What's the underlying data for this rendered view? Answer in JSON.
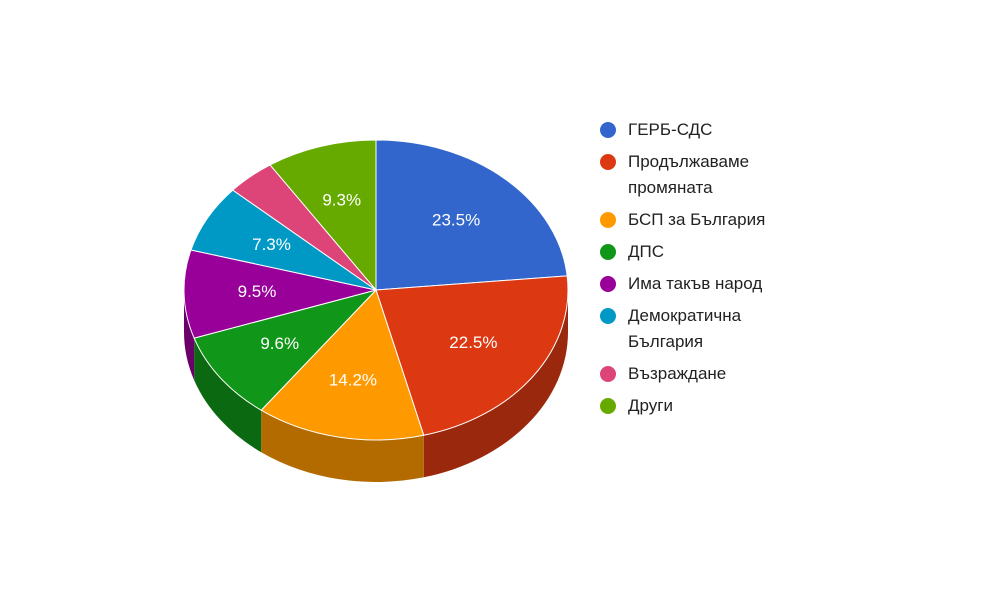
{
  "chart_data": {
    "type": "pie",
    "categories": [
      "ГЕРБ-СДС",
      "Продължаваме промяната",
      "БСП за България",
      "ДПС",
      "Има такъв народ",
      "Демократична България",
      "Възраждане",
      "Други"
    ],
    "values": [
      23.5,
      22.5,
      14.2,
      9.6,
      9.5,
      7.3,
      4.1,
      9.3
    ],
    "value_labels": [
      "23.5%",
      "22.5%",
      "14.2%",
      "9.6%",
      "9.5%",
      "7.3%",
      null,
      "9.3%"
    ],
    "colors": [
      "#3366cc",
      "#dc3912",
      "#ff9900",
      "#109618",
      "#990099",
      "#0099c6",
      "#dd4477",
      "#66aa00"
    ],
    "legend": "right"
  }
}
